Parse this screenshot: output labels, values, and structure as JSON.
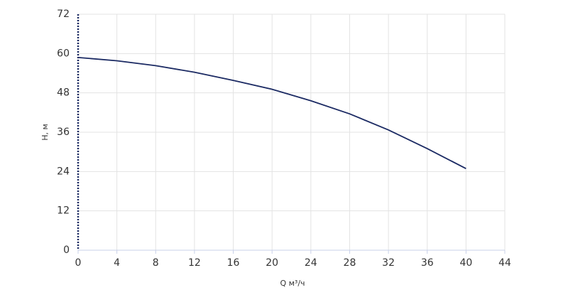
{
  "chart_data": {
    "type": "line",
    "x_label": "Q м³/ч",
    "y_label": "H, м",
    "x": [
      0,
      4,
      8,
      12,
      16,
      20,
      24,
      28,
      32,
      36,
      40
    ],
    "series": [
      {
        "name": "H",
        "color": "#1b2a63",
        "values": [
          58.8,
          57.8,
          56.3,
          54.3,
          51.8,
          49.1,
          45.6,
          41.6,
          36.7,
          31.0,
          24.9
        ]
      }
    ],
    "xlim": [
      0,
      44
    ],
    "xticks": [
      0,
      4,
      8,
      12,
      16,
      20,
      24,
      28,
      32,
      36,
      40,
      44
    ],
    "ylim": [
      0,
      72
    ],
    "yticks": [
      0,
      12,
      24,
      36,
      48,
      60,
      72
    ],
    "grid": true
  }
}
